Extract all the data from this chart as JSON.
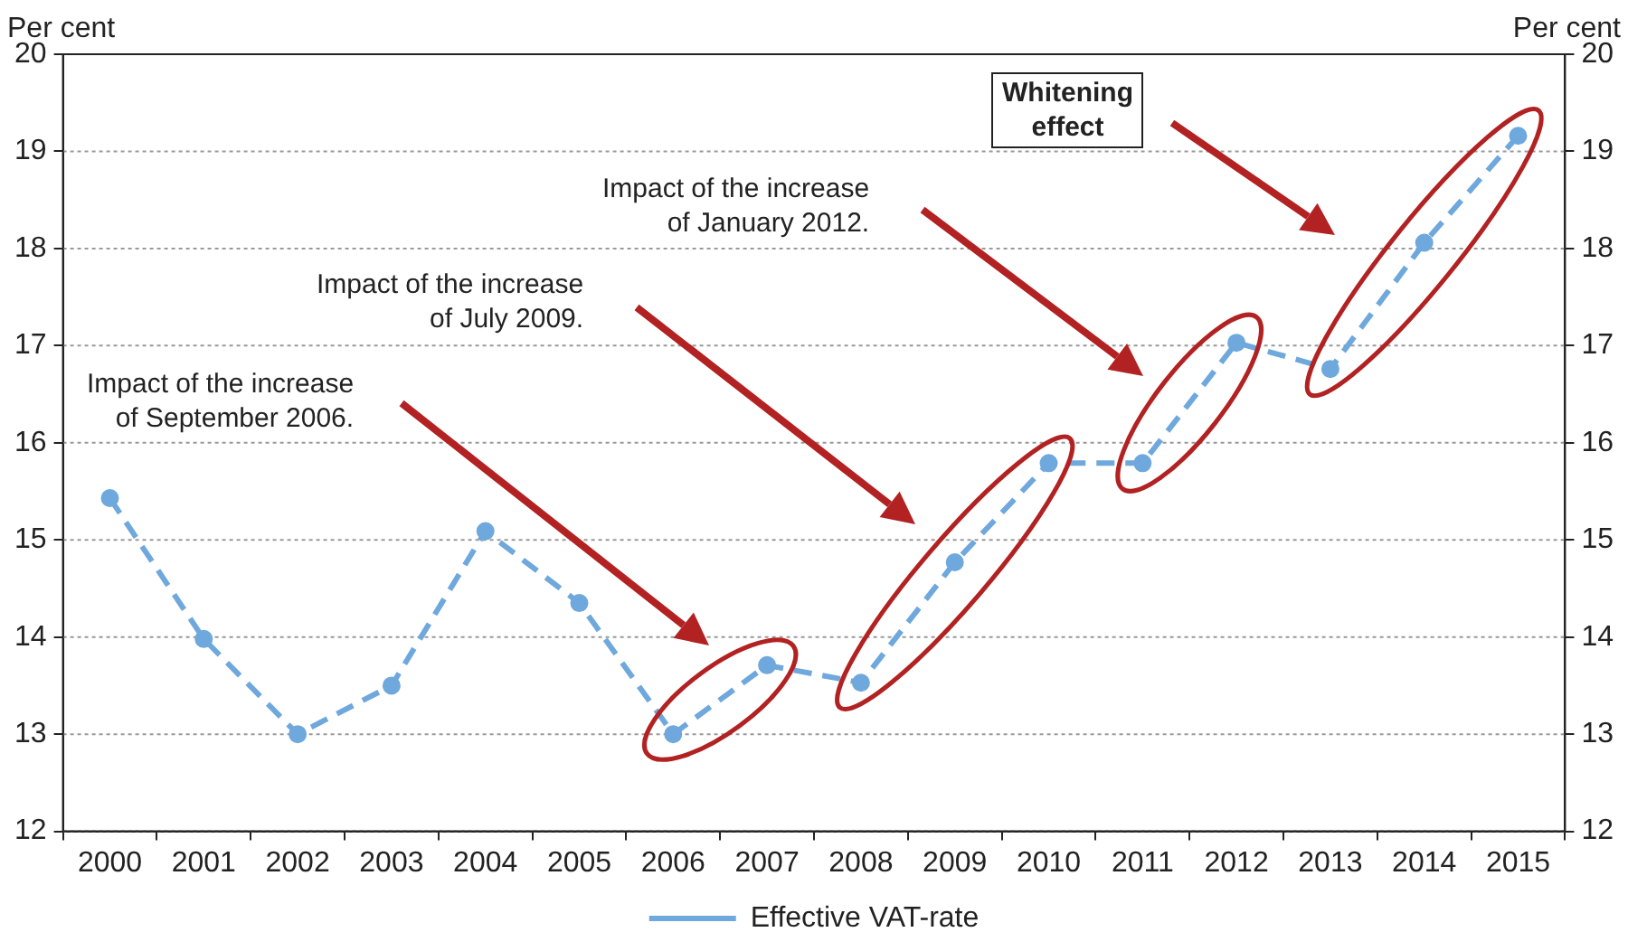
{
  "chart_data": {
    "type": "line",
    "ylabel": "Per cent",
    "y2label": "Per cent",
    "categories": [
      "2000",
      "2001",
      "2002",
      "2003",
      "2004",
      "2005",
      "2006",
      "2007",
      "2008",
      "2009",
      "2010",
      "2011",
      "2012",
      "2013",
      "2014",
      "2015"
    ],
    "series": [
      {
        "name": "Effective VAT-rate",
        "color": "#6fa8dc",
        "values": [
          15.43,
          13.98,
          13.0,
          13.5,
          15.09,
          14.35,
          13.0,
          13.71,
          13.53,
          14.77,
          15.79,
          15.79,
          17.03,
          16.76,
          18.06,
          19.16
        ]
      }
    ],
    "ylim": [
      12,
      20
    ],
    "yticks": [
      12,
      13,
      14,
      15,
      16,
      17,
      18,
      19,
      20
    ],
    "y2lim": [
      12,
      20
    ],
    "y2ticks": [
      12,
      13,
      14,
      15,
      16,
      17,
      18,
      19,
      20
    ],
    "grid": "y",
    "legend": "bottom",
    "marker": "circle",
    "line_style": "dashed",
    "annotations": [
      "Impact of the increase\nof September 2006.",
      "Impact of the increase\nof July 2009.",
      "Impact of the increase\nof January 2012.",
      "Whitening\neffect"
    ]
  }
}
